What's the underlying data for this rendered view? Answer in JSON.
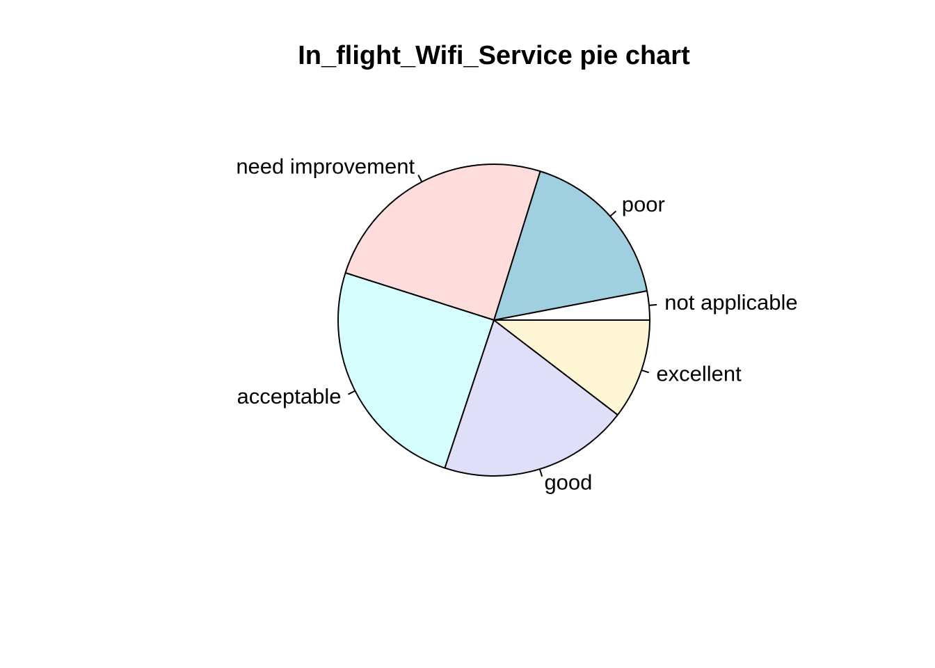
{
  "chart_data": {
    "type": "pie",
    "title": "In_flight_Wifi_Service pie chart",
    "direction": "counterclockwise",
    "start": "3 o'clock",
    "slices": [
      {
        "label": "not applicable",
        "value": 0.03,
        "color": "#ffffff"
      },
      {
        "label": "poor",
        "value": 0.172,
        "color": "#a0cfe0"
      },
      {
        "label": "need improvement",
        "value": 0.249,
        "color": "#ffdddd"
      },
      {
        "label": "acceptable",
        "value": 0.248,
        "color": "#d7feff"
      },
      {
        "label": "good",
        "value": 0.197,
        "color": "#dfdffa"
      },
      {
        "label": "excellent",
        "value": 0.104,
        "color": "#fff6d6"
      }
    ]
  }
}
